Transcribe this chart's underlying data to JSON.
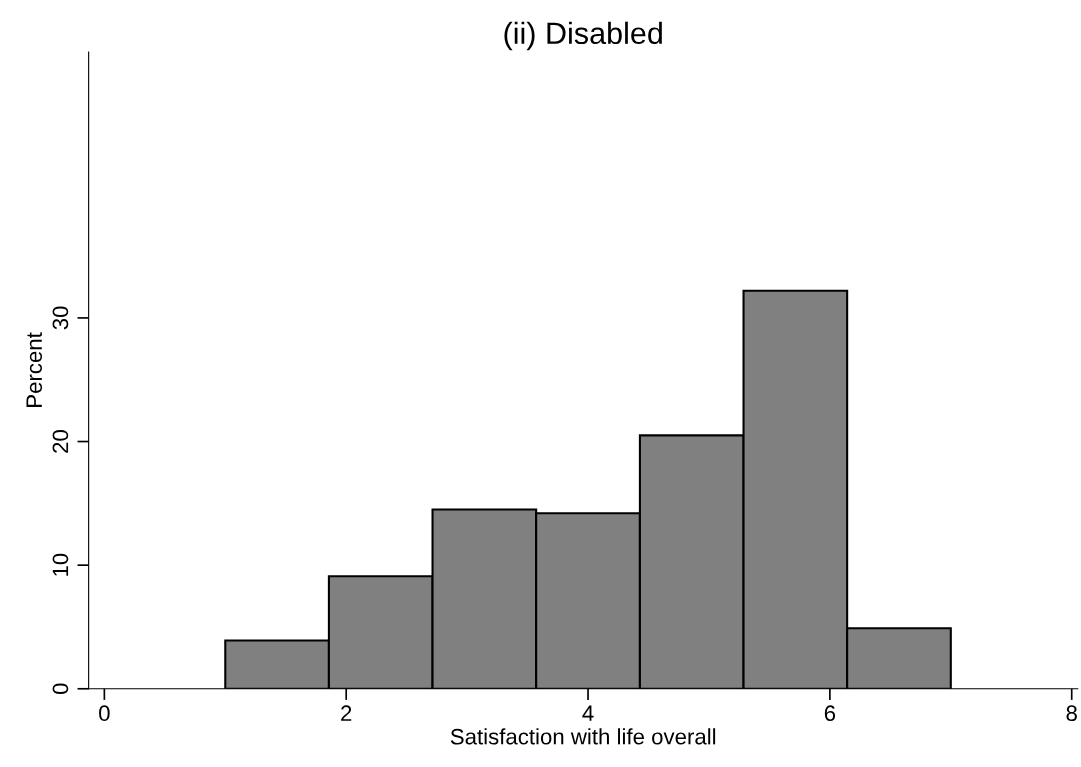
{
  "chart_data": {
    "type": "histogram",
    "title": "(ii) Disabled",
    "xlabel": "Satisfaction with life overall",
    "ylabel": "Percent",
    "bins": [
      1,
      1.857,
      2.714,
      3.571,
      4.429,
      5.286,
      6.143,
      7
    ],
    "values": [
      3.9,
      9.1,
      14.5,
      14.2,
      20.5,
      32.2,
      4.9
    ],
    "color": "#808080",
    "xlim": [
      -0.13,
      8.05
    ],
    "ylim": [
      0,
      51.5
    ],
    "xticks": [
      0,
      2,
      4,
      6,
      8
    ],
    "yticks": [
      0,
      10,
      20,
      30
    ],
    "grid": false
  }
}
